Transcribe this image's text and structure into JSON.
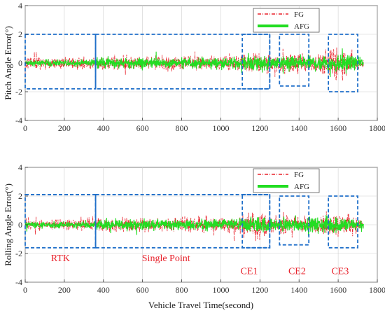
{
  "chart_data": [
    {
      "type": "line",
      "ylabel": "Pitch Angle Error(°)",
      "xlabel": "",
      "xlim": [
        0,
        1800
      ],
      "ylim": [
        -4,
        4
      ],
      "xticks": [
        "0",
        "200",
        "400",
        "600",
        "800",
        "1000",
        "1200",
        "1400",
        "1600",
        "1800"
      ],
      "yticks": [
        "-4",
        "-2",
        "0",
        "2",
        "4"
      ],
      "grid": true,
      "legend_position": "top-right",
      "series": [
        {
          "name": "FG",
          "color": "#e8202a",
          "style": "dash-dot",
          "envelope": [
            [
              0,
              1.0
            ],
            [
              350,
              1.0
            ],
            [
              360,
              1.2
            ],
            [
              1000,
              1.3
            ],
            [
              1100,
              1.4
            ],
            [
              1130,
              2.0
            ],
            [
              1230,
              2.0
            ],
            [
              1260,
              1.2
            ],
            [
              1320,
              1.8
            ],
            [
              1430,
              1.8
            ],
            [
              1460,
              1.3
            ],
            [
              1540,
              2.0
            ],
            [
              1580,
              3.2
            ],
            [
              1620,
              2.8
            ],
            [
              1680,
              1.5
            ],
            [
              1730,
              1.0
            ]
          ]
        },
        {
          "name": "AFG",
          "color": "#22dd22",
          "style": "solid",
          "envelope": [
            [
              0,
              0.6
            ],
            [
              350,
              0.6
            ],
            [
              360,
              0.9
            ],
            [
              1100,
              1.0
            ],
            [
              1130,
              1.5
            ],
            [
              1230,
              1.5
            ],
            [
              1260,
              1.0
            ],
            [
              1320,
              1.3
            ],
            [
              1430,
              1.3
            ],
            [
              1540,
              1.6
            ],
            [
              1620,
              1.8
            ],
            [
              1680,
              1.2
            ],
            [
              1730,
              0.8
            ]
          ]
        }
      ],
      "regions": [
        {
          "x": [
            0,
            360
          ],
          "y": [
            -1.8,
            2
          ]
        },
        {
          "x": [
            360,
            1250
          ],
          "y": [
            -1.8,
            2
          ]
        },
        {
          "x": [
            1110,
            1250
          ],
          "y": [
            -1.8,
            2
          ]
        },
        {
          "x": [
            1300,
            1450
          ],
          "y": [
            -1.6,
            2
          ]
        },
        {
          "x": [
            1550,
            1700
          ],
          "y": [
            -2,
            2
          ]
        }
      ]
    },
    {
      "type": "line",
      "ylabel": "Rolling Angle Error(°)",
      "xlabel": "Vehicle Travel Time(second)",
      "xlim": [
        0,
        1800
      ],
      "ylim": [
        -4,
        4
      ],
      "xticks": [
        "0",
        "200",
        "400",
        "600",
        "800",
        "1000",
        "1200",
        "1400",
        "1600",
        "1800"
      ],
      "yticks": [
        "-4",
        "-2",
        "0",
        "2",
        "4"
      ],
      "grid": true,
      "legend_position": "top-right",
      "series": [
        {
          "name": "FG",
          "color": "#e8202a",
          "style": "dash-dot",
          "envelope": [
            [
              0,
              0.9
            ],
            [
              350,
              0.9
            ],
            [
              360,
              1.2
            ],
            [
              1000,
              1.3
            ],
            [
              1100,
              1.4
            ],
            [
              1130,
              2.2
            ],
            [
              1180,
              2.8
            ],
            [
              1230,
              2.0
            ],
            [
              1260,
              1.2
            ],
            [
              1320,
              1.6
            ],
            [
              1430,
              1.6
            ],
            [
              1460,
              1.2
            ],
            [
              1540,
              2.0
            ],
            [
              1620,
              2.2
            ],
            [
              1680,
              1.5
            ],
            [
              1730,
              1.0
            ]
          ]
        },
        {
          "name": "AFG",
          "color": "#22dd22",
          "style": "solid",
          "envelope": [
            [
              0,
              0.6
            ],
            [
              350,
              0.6
            ],
            [
              360,
              0.9
            ],
            [
              1100,
              1.0
            ],
            [
              1130,
              1.5
            ],
            [
              1230,
              1.5
            ],
            [
              1260,
              1.0
            ],
            [
              1320,
              1.2
            ],
            [
              1430,
              1.2
            ],
            [
              1540,
              1.5
            ],
            [
              1620,
              1.6
            ],
            [
              1680,
              1.1
            ],
            [
              1730,
              0.8
            ]
          ]
        }
      ],
      "regions": [
        {
          "x": [
            0,
            360
          ],
          "y": [
            -1.6,
            2.1
          ]
        },
        {
          "x": [
            360,
            1250
          ],
          "y": [
            -1.6,
            2.1
          ]
        },
        {
          "x": [
            1110,
            1250
          ],
          "y": [
            -1.6,
            2.1
          ]
        },
        {
          "x": [
            1300,
            1450
          ],
          "y": [
            -1.4,
            2
          ]
        },
        {
          "x": [
            1550,
            1700
          ],
          "y": [
            -1.6,
            2
          ]
        }
      ],
      "annotations": [
        {
          "text": "RTK",
          "x": 180,
          "y": -2.3
        },
        {
          "text": "Single Point",
          "x": 720,
          "y": -2.3
        },
        {
          "text": "CE1",
          "x": 1145,
          "y": -3.2
        },
        {
          "text": "CE2",
          "x": 1390,
          "y": -3.2
        },
        {
          "text": "CE3",
          "x": 1610,
          "y": -3.2
        }
      ]
    }
  ],
  "styles": {
    "region_color": "#1f6fc9",
    "annotation_color": "#e8202a",
    "axis_color": "#333333",
    "grid_color": "#cfcfcf"
  }
}
